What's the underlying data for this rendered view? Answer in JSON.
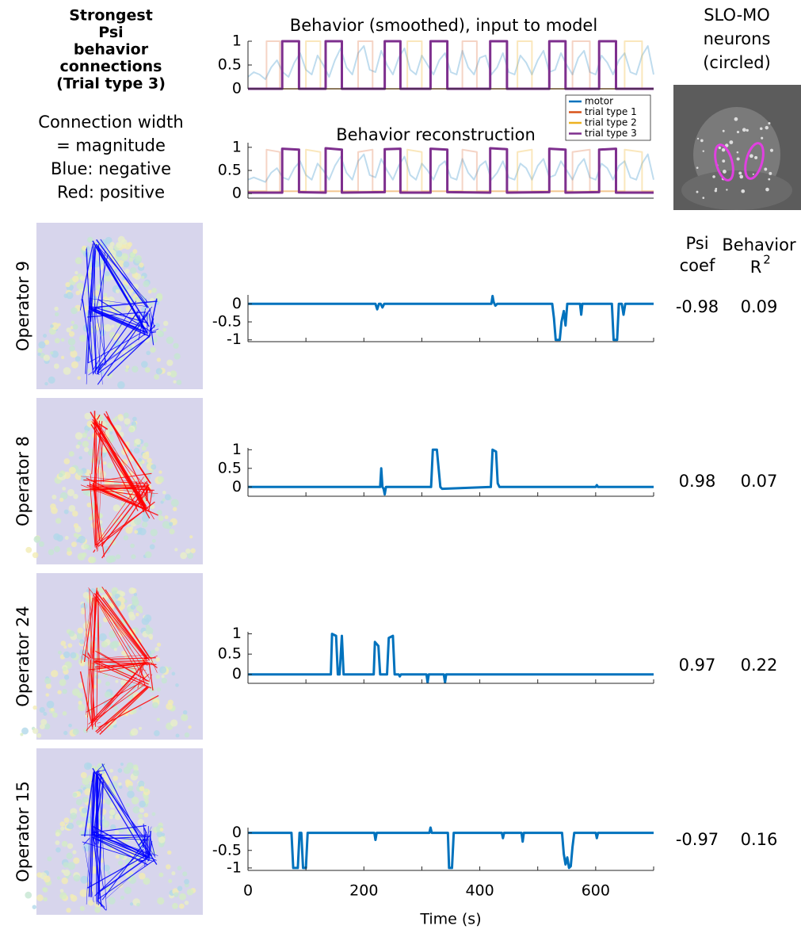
{
  "caption": {
    "title_lines": [
      "Strongest",
      "Psi",
      "behavior",
      "connections",
      "(Trial type 3)"
    ],
    "note_lines": [
      "Connection width",
      "= magnitude",
      "Blue: negative",
      "Red: positive"
    ]
  },
  "micrograph": {
    "title_lines": [
      "SLO-MO",
      "neurons",
      "(circled)"
    ],
    "circle_color": "#e040e0"
  },
  "columns": {
    "psi": [
      "Psi",
      "coef"
    ],
    "behavior": "Behavior",
    "r2_base": "R",
    "r2_exp": "2"
  },
  "chart_data": [
    {
      "type": "line",
      "title": "Behavior (smoothed), input to model",
      "xlim": [
        0,
        700
      ],
      "ylim": [
        0,
        1
      ],
      "yticks": [
        0,
        0.5,
        1
      ],
      "legend": "below-right",
      "series": [
        {
          "name": "motor",
          "color": "#0072bd",
          "opacity": 0.25,
          "x": [
            0,
            10,
            20,
            30,
            40,
            50,
            60,
            70,
            80,
            90,
            100,
            110,
            120,
            130,
            140,
            150,
            160,
            170,
            180,
            190,
            200,
            210,
            220,
            230,
            240,
            250,
            260,
            270,
            280,
            290,
            300,
            310,
            320,
            330,
            340,
            350,
            360,
            370,
            380,
            390,
            400,
            410,
            420,
            430,
            440,
            450,
            460,
            470,
            480,
            490,
            500,
            510,
            520,
            530,
            540,
            550,
            560,
            570,
            580,
            590,
            600,
            610,
            620,
            630,
            640,
            650,
            660,
            670,
            680,
            690,
            700
          ],
          "values": [
            0.25,
            0.35,
            0.3,
            0.2,
            0.45,
            0.6,
            0.35,
            0.25,
            0.55,
            0.75,
            0.4,
            0.3,
            0.7,
            0.5,
            0.25,
            0.6,
            0.85,
            0.45,
            0.3,
            0.75,
            0.9,
            0.4,
            0.35,
            0.8,
            0.5,
            0.3,
            0.65,
            0.85,
            0.4,
            0.3,
            0.7,
            0.5,
            0.3,
            0.6,
            0.75,
            0.35,
            0.3,
            0.8,
            0.45,
            0.3,
            0.65,
            0.7,
            0.3,
            0.45,
            0.75,
            0.35,
            0.3,
            0.7,
            0.55,
            0.3,
            0.6,
            0.8,
            0.35,
            0.4,
            0.75,
            0.5,
            0.3,
            0.65,
            0.8,
            0.35,
            0.3,
            0.7,
            0.55,
            0.3,
            0.6,
            0.75,
            0.35,
            0.3,
            0.7,
            0.9,
            0.3
          ]
        },
        {
          "name": "trial type 1",
          "color": "#d95319",
          "opacity": 0.25,
          "x": [
            0,
            32,
            32,
            55,
            55,
            190,
            190,
            215,
            215,
            370,
            370,
            395,
            395,
            560,
            560,
            590,
            590,
            700
          ],
          "values": [
            0,
            0,
            1,
            1,
            0,
            0,
            1,
            1,
            0,
            0,
            1,
            1,
            0,
            0,
            1,
            1,
            0,
            0
          ]
        },
        {
          "name": "trial type 2",
          "color": "#edb120",
          "opacity": 0.3,
          "x": [
            0,
            100,
            100,
            125,
            125,
            275,
            275,
            300,
            300,
            465,
            465,
            490,
            490,
            650,
            650,
            680,
            680,
            700
          ],
          "values": [
            0,
            0,
            1,
            1,
            0,
            0,
            1,
            1,
            0,
            0,
            1,
            1,
            0,
            0,
            1,
            1,
            0,
            0
          ]
        },
        {
          "name": "trial type 3",
          "color": "#7e2f8e",
          "opacity": 1,
          "x": [
            0,
            59,
            59,
            88,
            88,
            134,
            134,
            162,
            162,
            236,
            236,
            263,
            263,
            315,
            315,
            344,
            344,
            418,
            418,
            447,
            447,
            520,
            520,
            548,
            548,
            606,
            606,
            635,
            635,
            700
          ],
          "values": [
            0,
            0,
            1,
            1,
            0,
            0,
            1,
            1,
            0,
            0,
            1,
            1,
            0,
            0,
            1,
            1,
            0,
            0,
            1,
            1,
            0,
            0,
            1,
            1,
            0,
            0,
            1,
            1,
            0,
            0
          ]
        }
      ]
    },
    {
      "type": "line",
      "title": "Behavior reconstruction",
      "xlim": [
        0,
        700
      ],
      "ylim": [
        -0.1,
        1.1
      ],
      "yticks": [
        0,
        0.5,
        1
      ],
      "series": [
        {
          "color": "#0072bd",
          "opacity": 0.25,
          "x": [
            0,
            10,
            20,
            30,
            40,
            50,
            60,
            70,
            80,
            90,
            100,
            110,
            120,
            130,
            140,
            150,
            160,
            170,
            180,
            190,
            200,
            210,
            220,
            230,
            240,
            250,
            260,
            270,
            280,
            290,
            300,
            310,
            320,
            330,
            340,
            350,
            360,
            370,
            380,
            390,
            400,
            410,
            420,
            430,
            440,
            450,
            460,
            470,
            480,
            490,
            500,
            510,
            520,
            530,
            540,
            550,
            560,
            570,
            580,
            590,
            600,
            610,
            620,
            630,
            640,
            650,
            660,
            670,
            680,
            690,
            700
          ],
          "values": [
            0.3,
            0.35,
            0.3,
            0.25,
            0.45,
            0.55,
            0.35,
            0.3,
            0.55,
            0.7,
            0.4,
            0.3,
            0.65,
            0.5,
            0.3,
            0.6,
            0.8,
            0.45,
            0.3,
            0.7,
            0.85,
            0.4,
            0.35,
            0.75,
            0.5,
            0.3,
            0.6,
            0.8,
            0.4,
            0.3,
            0.65,
            0.5,
            0.3,
            0.6,
            0.7,
            0.35,
            0.3,
            0.75,
            0.45,
            0.3,
            0.6,
            0.7,
            0.3,
            0.45,
            0.7,
            0.35,
            0.3,
            0.65,
            0.55,
            0.3,
            0.6,
            0.75,
            0.35,
            0.4,
            0.7,
            0.5,
            0.3,
            0.6,
            0.75,
            0.35,
            0.3,
            0.65,
            0.55,
            0.3,
            0.6,
            0.7,
            0.35,
            0.3,
            0.65,
            0.85,
            0.3
          ]
        },
        {
          "color": "#d95319",
          "opacity": 0.25,
          "x": [
            0,
            32,
            32,
            55,
            55,
            190,
            190,
            215,
            215,
            370,
            370,
            395,
            395,
            560,
            560,
            590,
            590,
            700
          ],
          "values": [
            0.05,
            0.05,
            0.95,
            0.9,
            0.05,
            0.05,
            0.9,
            0.95,
            0.05,
            0.05,
            0.95,
            0.9,
            0.05,
            0.05,
            0.9,
            0.95,
            0.05,
            0.05
          ]
        },
        {
          "color": "#edb120",
          "opacity": 0.3,
          "x": [
            0,
            100,
            100,
            125,
            125,
            275,
            275,
            300,
            300,
            465,
            465,
            490,
            490,
            650,
            650,
            680,
            680,
            700
          ],
          "values": [
            0.05,
            0.05,
            0.95,
            0.9,
            0.05,
            0.05,
            0.95,
            0.9,
            0.05,
            0.05,
            0.9,
            0.95,
            0.05,
            0.05,
            0.95,
            0.9,
            0.05,
            0.05
          ]
        },
        {
          "color": "#7e2f8e",
          "opacity": 1,
          "x": [
            0,
            59,
            59,
            88,
            88,
            134,
            134,
            162,
            162,
            236,
            236,
            263,
            263,
            315,
            315,
            344,
            344,
            418,
            418,
            447,
            447,
            520,
            520,
            548,
            548,
            606,
            606,
            635,
            635,
            700
          ],
          "values": [
            0.02,
            0.02,
            0.97,
            0.95,
            0.03,
            0.02,
            0.98,
            0.95,
            0.02,
            0.03,
            0.96,
            0.97,
            0.02,
            0.02,
            0.97,
            0.95,
            0.03,
            0.02,
            0.98,
            0.96,
            0.02,
            0.03,
            0.97,
            0.95,
            0.02,
            0.03,
            0.95,
            0.97,
            0.02,
            0.02
          ]
        }
      ]
    },
    {
      "type": "line",
      "label": "Operator 9",
      "psi_coef": -0.98,
      "behavior_r2": 0.09,
      "network_color": "#0000ff",
      "xlim": [
        0,
        700
      ],
      "ylim": [
        -1.05,
        0.25
      ],
      "yticks": [
        -1,
        -0.5,
        0
      ],
      "xtick_marks": [
        0,
        100,
        200,
        300,
        400,
        500,
        600,
        700
      ],
      "series": [
        {
          "color": "#0072bd",
          "x": [
            0,
            220,
            223,
            226,
            229,
            232,
            235,
            238,
            420,
            422,
            424,
            427,
            430,
            525,
            528,
            531,
            538,
            541,
            545,
            548,
            551,
            573,
            575,
            577,
            628,
            631,
            637,
            640,
            645,
            648,
            651,
            700
          ],
          "values": [
            0,
            0,
            -0.15,
            0,
            0,
            -0.1,
            0,
            0,
            0,
            0.22,
            0.05,
            -0.05,
            0,
            0,
            -0.4,
            -1,
            -1,
            -0.5,
            -0.2,
            -0.6,
            0,
            0,
            -0.3,
            0,
            0,
            -1,
            -1,
            0,
            0,
            -0.3,
            0,
            0
          ]
        }
      ]
    },
    {
      "type": "line",
      "label": "Operator 8",
      "psi_coef": 0.98,
      "behavior_r2": 0.07,
      "network_color": "#ff0000",
      "xlim": [
        0,
        700
      ],
      "ylim": [
        -0.25,
        1.05
      ],
      "yticks": [
        0,
        0.5,
        1
      ],
      "xtick_marks": [
        0,
        100,
        200,
        300,
        400,
        500,
        600,
        700
      ],
      "series": [
        {
          "color": "#0072bd",
          "x": [
            0,
            228,
            230,
            232,
            234,
            236,
            238,
            240,
            316,
            319,
            326,
            329,
            332,
            335,
            419,
            422,
            428,
            431,
            434,
            600,
            602,
            604,
            700
          ],
          "values": [
            0,
            0,
            0.5,
            0,
            -0.05,
            -0.2,
            0,
            0,
            0,
            1,
            1,
            0.5,
            0,
            -0.05,
            0,
            1,
            0.95,
            0.1,
            0,
            0,
            0.05,
            0,
            0
          ]
        }
      ]
    },
    {
      "type": "line",
      "label": "Operator  24",
      "psi_coef": 0.97,
      "behavior_r2": 0.22,
      "network_color": "#ff0000",
      "xlim": [
        0,
        700
      ],
      "ylim": [
        -0.22,
        1.05
      ],
      "yticks": [
        0,
        0.5,
        1
      ],
      "xtick_marks": [
        0,
        100,
        200,
        300,
        400,
        500,
        600,
        700
      ],
      "series": [
        {
          "color": "#0072bd",
          "x": [
            0,
            143,
            145,
            152,
            155,
            158,
            162,
            165,
            168,
            170,
            217,
            219,
            225,
            228,
            240,
            243,
            250,
            253,
            260,
            262,
            264,
            308,
            310,
            312,
            338,
            340,
            342,
            700
          ],
          "values": [
            0,
            0,
            1,
            0.95,
            0,
            0,
            0.95,
            0,
            0,
            0,
            0,
            0.8,
            0.7,
            0,
            0,
            0.9,
            0.95,
            0,
            0,
            -0.05,
            0,
            0,
            -0.2,
            0,
            0,
            -0.2,
            0,
            0
          ]
        }
      ]
    },
    {
      "type": "line",
      "label": "Operator 15",
      "psi_coef": -0.97,
      "behavior_r2": 0.16,
      "network_color": "#0000ff",
      "xlim": [
        0,
        700
      ],
      "ylim": [
        -1.07,
        0.15
      ],
      "yticks": [
        -1,
        -0.5,
        0
      ],
      "xticks": [
        0,
        200,
        400,
        600
      ],
      "xminor_ticks": [
        100,
        300,
        500,
        700
      ],
      "xlabel": "Time (s)",
      "series": [
        {
          "color": "#0072bd",
          "x": [
            0,
            75,
            78,
            86,
            89,
            92,
            95,
            100,
            103,
            218,
            220,
            222,
            313,
            315,
            317,
            345,
            347,
            352,
            355,
            438,
            440,
            442,
            472,
            474,
            476,
            542,
            545,
            548,
            551,
            554,
            557,
            560,
            563,
            600,
            602,
            604,
            700
          ],
          "values": [
            0,
            0,
            -1,
            -1,
            0,
            0,
            -1,
            -1,
            0,
            0,
            -0.2,
            0,
            0,
            0.15,
            0,
            0,
            -1,
            -1,
            0,
            0,
            -0.15,
            0,
            0,
            -0.25,
            0,
            0,
            -0.6,
            -0.9,
            -0.7,
            -1,
            -0.95,
            -0.4,
            0,
            0,
            -0.15,
            0,
            0
          ]
        }
      ]
    }
  ]
}
